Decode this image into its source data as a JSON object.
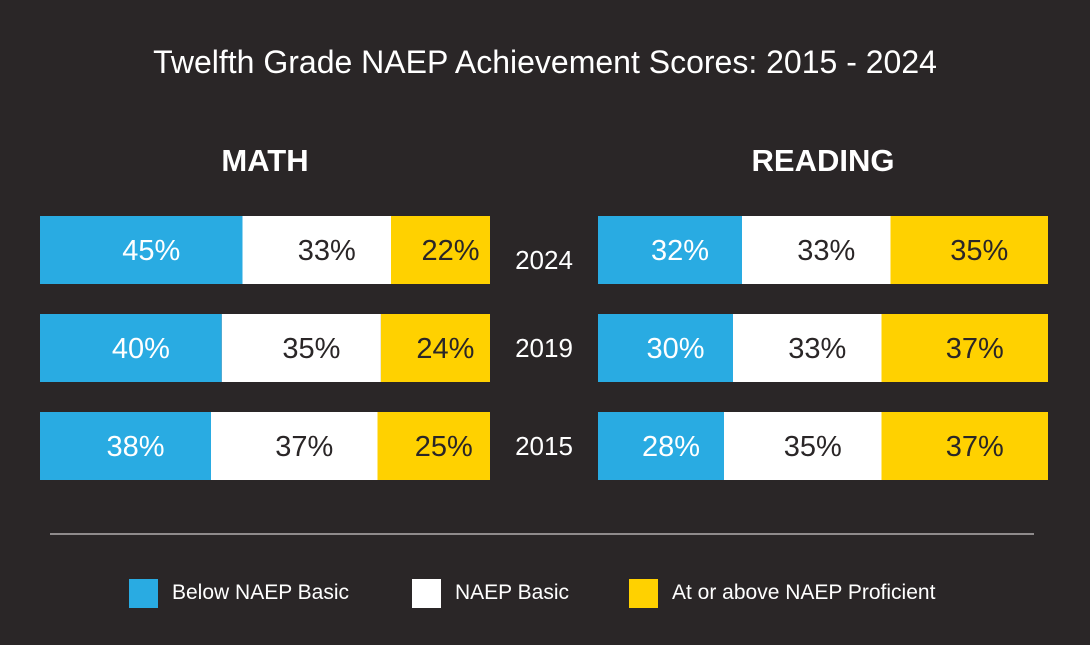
{
  "title": "Twelfth Grade NAEP Achievement Scores: 2015 - 2024",
  "colors": {
    "background": "#2a2627",
    "below_basic": "#29abe2",
    "basic": "#ffffff",
    "proficient": "#ffd100",
    "text_on_blue": "#ffffff",
    "text_on_white": "#2a2627",
    "text_on_yellow": "#2a2627"
  },
  "legend": [
    {
      "label": "Below NAEP Basic",
      "color": "#29abe2"
    },
    {
      "label": "NAEP Basic",
      "color": "#ffffff"
    },
    {
      "label": "At or above NAEP Proficient",
      "color": "#ffd100"
    }
  ],
  "chart_data": [
    {
      "type": "bar",
      "stacked": true,
      "orientation": "horizontal",
      "title": "MATH",
      "categories": [
        "2024",
        "2019",
        "2015"
      ],
      "series": [
        {
          "name": "Below NAEP Basic",
          "values": [
            45,
            40,
            38
          ],
          "labels": [
            "45%",
            "40%",
            "38%"
          ]
        },
        {
          "name": "NAEP Basic",
          "values": [
            33,
            35,
            37
          ],
          "labels": [
            "33%",
            "35%",
            "37%"
          ]
        },
        {
          "name": "At or above NAEP Proficient",
          "values": [
            22,
            24,
            25
          ],
          "labels": [
            "22%",
            "24%",
            "25%"
          ]
        }
      ]
    },
    {
      "type": "bar",
      "stacked": true,
      "orientation": "horizontal",
      "title": "READING",
      "categories": [
        "2024",
        "2019",
        "2015"
      ],
      "series": [
        {
          "name": "Below NAEP Basic",
          "values": [
            32,
            30,
            28
          ],
          "labels": [
            "32%",
            "30%",
            "28%"
          ]
        },
        {
          "name": "NAEP Basic",
          "values": [
            33,
            33,
            35
          ],
          "labels": [
            "33%",
            "33%",
            "35%"
          ]
        },
        {
          "name": "At or above NAEP Proficient",
          "values": [
            35,
            37,
            37
          ],
          "labels": [
            "35%",
            "37%",
            "37%"
          ]
        }
      ]
    }
  ]
}
